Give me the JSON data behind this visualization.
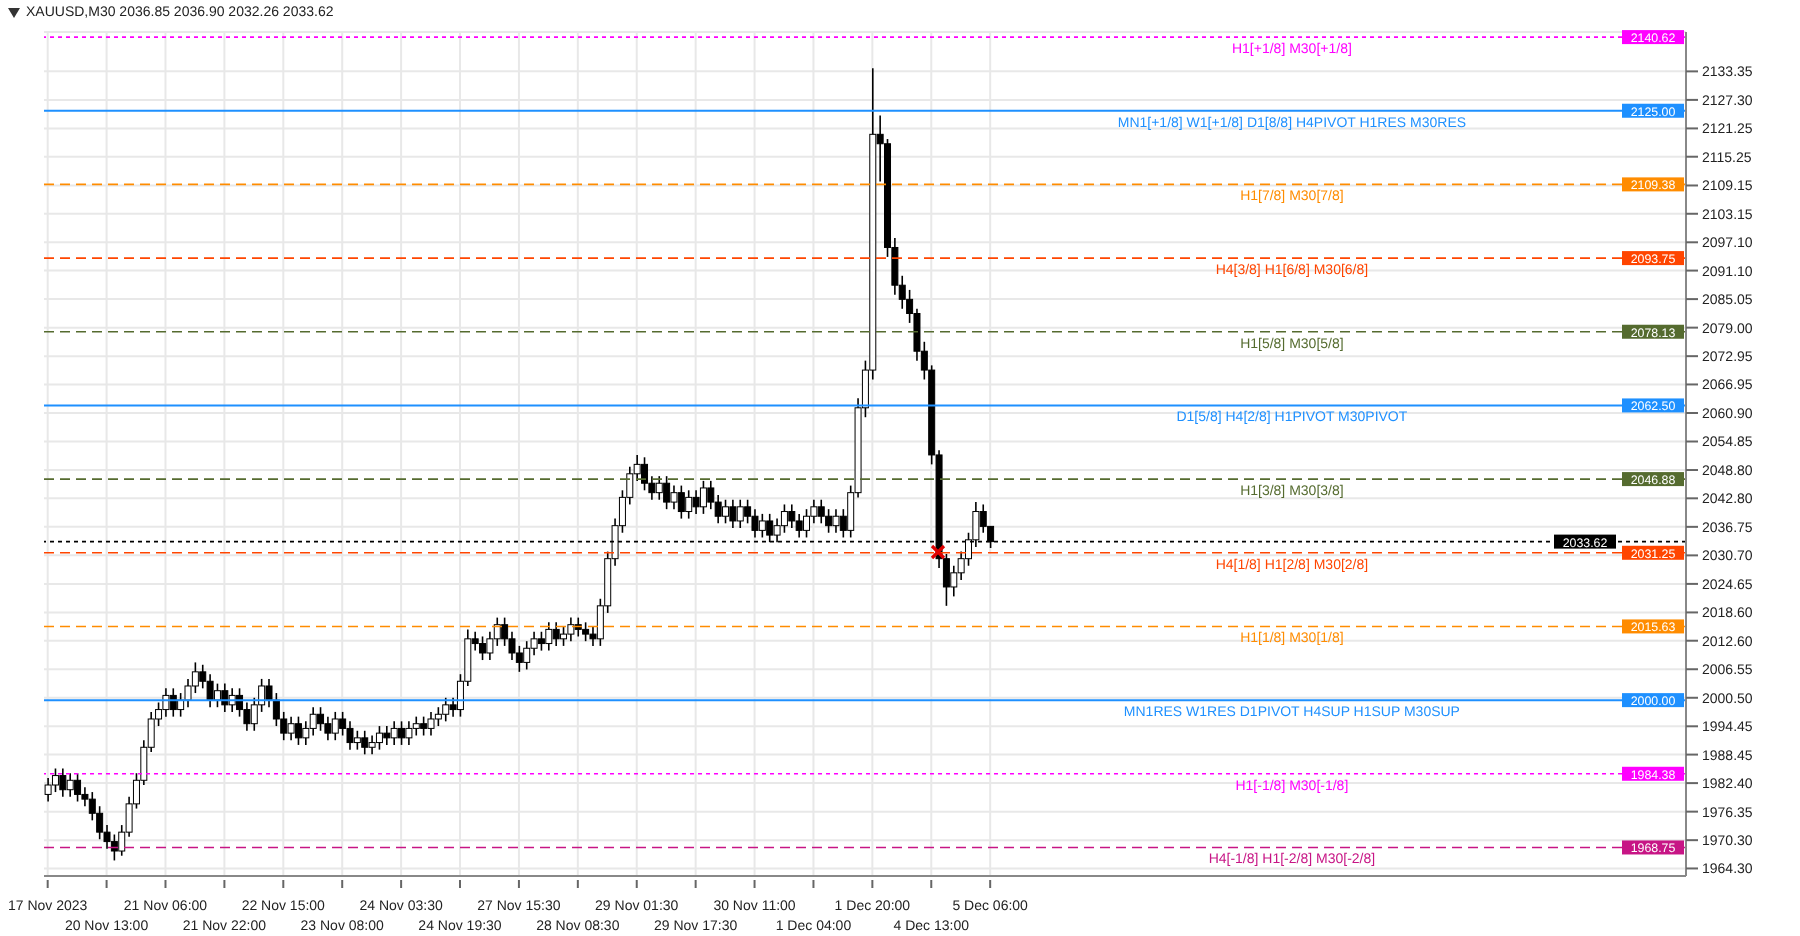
{
  "chart_data": {
    "type": "candlestick",
    "title": "XAUUSD,M30  2036.85 2036.90 2032.26 2033.62",
    "color": "#000000",
    "categories": [
      "17 Nov 2023",
      null,
      null,
      null,
      null,
      null,
      null,
      null,
      "20 Nov 13:00",
      null,
      null,
      null,
      null,
      null,
      null,
      null,
      "21 Nov 06:00",
      null,
      null,
      null,
      null,
      null,
      null,
      null,
      "21 Nov 22:00",
      null,
      null,
      null,
      null,
      null,
      null,
      null,
      "22 Nov 15:00",
      null,
      null,
      null,
      null,
      null,
      null,
      null,
      "23 Nov 08:00",
      null,
      null,
      null,
      null,
      null,
      null,
      null,
      "24 Nov 03:30",
      null,
      null,
      null,
      null,
      null,
      null,
      null,
      "24 Nov 19:30",
      null,
      null,
      null,
      null,
      null,
      null,
      null,
      "27 Nov 15:30",
      null,
      null,
      null,
      null,
      null,
      null,
      null,
      "28 Nov 08:30",
      null,
      null,
      null,
      null,
      null,
      null,
      null,
      "29 Nov 01:30",
      null,
      null,
      null,
      null,
      null,
      null,
      null,
      "29 Nov 17:30",
      null,
      null,
      null,
      null,
      null,
      null,
      null,
      "30 Nov 11:00",
      null,
      null,
      null,
      null,
      null,
      null,
      null,
      "1 Dec 04:00",
      null,
      null,
      null,
      null,
      null,
      null,
      null,
      "1 Dec 20:00",
      null,
      null,
      null,
      null,
      null,
      null,
      null,
      "4 Dec 13:00",
      null,
      null,
      null,
      null,
      null,
      null,
      null,
      "5 Dec 06:00",
      null,
      null,
      null,
      null,
      null,
      null,
      null,
      null,
      null,
      null,
      null,
      null,
      null,
      null,
      null,
      null,
      null,
      null,
      null,
      null,
      null,
      null,
      null,
      null,
      null,
      null,
      null,
      null,
      null,
      null,
      null,
      null,
      null,
      null,
      null,
      null,
      null,
      null,
      null,
      null,
      null,
      null,
      null,
      null,
      null,
      null,
      null,
      null,
      null,
      null,
      null,
      null,
      null,
      null,
      null,
      null,
      null,
      null,
      null,
      null,
      null,
      null,
      null,
      null,
      null,
      null,
      null,
      null,
      null,
      null,
      null,
      null,
      null,
      null,
      null,
      null,
      null,
      null,
      null,
      null,
      null,
      null,
      null,
      null,
      null,
      null,
      null,
      null,
      null,
      null,
      null,
      null,
      null,
      null
    ],
    "ohlc": [
      [
        1980,
        1983.5,
        1978.5,
        1982
      ],
      [
        1982,
        1985.5,
        1980.5,
        1984
      ],
      [
        1984,
        1985.5,
        1979.5,
        1981
      ],
      [
        1981,
        1984.5,
        1979.5,
        1983
      ],
      [
        1983,
        1984.5,
        1978.5,
        1980
      ],
      [
        1980,
        1981.5,
        1977.5,
        1979
      ],
      [
        1979,
        1980.5,
        1974.5,
        1976
      ],
      [
        1976,
        1977.5,
        1970.5,
        1972
      ],
      [
        1972,
        1973.5,
        1968.5,
        1970
      ],
      [
        1970,
        1971.5,
        1966,
        1968
      ],
      [
        1968,
        1973.5,
        1967,
        1972
      ],
      [
        1972,
        1979.5,
        1971,
        1978
      ],
      [
        1978,
        1984.5,
        1977,
        1983
      ],
      [
        1983,
        1991.5,
        1982,
        1990
      ],
      [
        1990,
        1997.5,
        1989,
        1996
      ],
      [
        1996,
        1999.5,
        1994.5,
        1998
      ],
      [
        1998,
        2002.5,
        1996.5,
        2001
      ],
      [
        2001,
        2002.5,
        1996.5,
        1998
      ],
      [
        1998,
        2001.5,
        1996.5,
        2000
      ],
      [
        2000,
        2004.5,
        1998.5,
        2003
      ],
      [
        2003,
        2008,
        2001.5,
        2006
      ],
      [
        2006,
        2007.5,
        2002.5,
        2004
      ],
      [
        2004,
        2005.5,
        1998.5,
        2000
      ],
      [
        2000,
        2003.5,
        1998.5,
        2002
      ],
      [
        2002,
        2003.5,
        1997.5,
        1999
      ],
      [
        1999,
        2002.5,
        1997.5,
        2001
      ],
      [
        2001,
        2002.5,
        1996.5,
        1998
      ],
      [
        1998,
        1999.5,
        1993.5,
        1995
      ],
      [
        1995,
        2000.5,
        1993.5,
        1999
      ],
      [
        1999,
        2004.5,
        1997.5,
        2003
      ],
      [
        2003,
        2004.5,
        1998.5,
        2000
      ],
      [
        2000,
        2001.5,
        1994.5,
        1996
      ],
      [
        1996,
        1997.5,
        1991.5,
        1993
      ],
      [
        1993,
        1996.5,
        1991.5,
        1995
      ],
      [
        1995,
        1996.5,
        1990.5,
        1992
      ],
      [
        1992,
        1995.5,
        1990.5,
        1994
      ],
      [
        1994,
        1998.5,
        1992.5,
        1997
      ],
      [
        1997,
        1998.5,
        1993.5,
        1995
      ],
      [
        1995,
        1996.5,
        1991.5,
        1993
      ],
      [
        1993,
        1997.5,
        1991.5,
        1996
      ],
      [
        1996,
        1997.5,
        1992.5,
        1994
      ],
      [
        1994,
        1995.5,
        1989.5,
        1991
      ],
      [
        1991,
        1993.5,
        1989.5,
        1992
      ],
      [
        1992,
        1993.5,
        1988.5,
        1990
      ],
      [
        1990,
        1992.5,
        1988.5,
        1991
      ],
      [
        1991,
        1994.5,
        1989.5,
        1993
      ],
      [
        1993,
        1994.5,
        1990.5,
        1992
      ],
      [
        1992,
        1995.5,
        1990.5,
        1994
      ],
      [
        1994,
        1995.5,
        1990.5,
        1992
      ],
      [
        1992,
        1995.5,
        1990.5,
        1994
      ],
      [
        1994,
        1996.5,
        1992.5,
        1995
      ],
      [
        1995,
        1996.5,
        1992.5,
        1994
      ],
      [
        1994,
        1997.5,
        1992.5,
        1996
      ],
      [
        1996,
        1998.5,
        1994.5,
        1997
      ],
      [
        1997,
        2000.5,
        1995.5,
        1999
      ],
      [
        1999,
        2000.5,
        1996.5,
        1998
      ],
      [
        1998,
        2005.5,
        1996.5,
        2004
      ],
      [
        2004,
        2015,
        2003,
        2013
      ],
      [
        2013,
        2014.5,
        2010.5,
        2012
      ],
      [
        2012,
        2013.5,
        2008.5,
        2010
      ],
      [
        2010,
        2014.5,
        2008.5,
        2013
      ],
      [
        2013,
        2017.5,
        2011.5,
        2016
      ],
      [
        2016,
        2017.5,
        2011.5,
        2013
      ],
      [
        2013,
        2014.5,
        2008.5,
        2010
      ],
      [
        2010,
        2011.5,
        2006,
        2008
      ],
      [
        2008,
        2012.5,
        2006.5,
        2011
      ],
      [
        2011,
        2014.5,
        2009.5,
        2013
      ],
      [
        2013,
        2014.5,
        2010.5,
        2012
      ],
      [
        2012,
        2016.5,
        2010.5,
        2015
      ],
      [
        2015,
        2016.5,
        2011.5,
        2013
      ],
      [
        2013,
        2015.5,
        2011.5,
        2014
      ],
      [
        2014,
        2017.5,
        2012.5,
        2016
      ],
      [
        2016,
        2017.5,
        2013.5,
        2015
      ],
      [
        2015,
        2016.5,
        2012.5,
        2014
      ],
      [
        2014,
        2015.5,
        2011.5,
        2013
      ],
      [
        2013,
        2021.5,
        2011.5,
        2020
      ],
      [
        2020,
        2031.5,
        2018.5,
        2030
      ],
      [
        2030,
        2038.5,
        2028.5,
        2037
      ],
      [
        2037,
        2044.5,
        2035.5,
        2043
      ],
      [
        2043,
        2049.5,
        2041.5,
        2048
      ],
      [
        2048,
        2052,
        2046.5,
        2050
      ],
      [
        2050,
        2051.5,
        2044.5,
        2046
      ],
      [
        2046,
        2047.5,
        2042.5,
        2044
      ],
      [
        2044,
        2047.5,
        2042.5,
        2046
      ],
      [
        2046,
        2047.5,
        2040.5,
        2042
      ],
      [
        2042,
        2045.5,
        2040.5,
        2044
      ],
      [
        2044,
        2045.5,
        2038.5,
        2040
      ],
      [
        2040,
        2044.5,
        2038.5,
        2043
      ],
      [
        2043,
        2044.5,
        2039.5,
        2041
      ],
      [
        2041,
        2046.5,
        2039.5,
        2045
      ],
      [
        2045,
        2046.5,
        2040.5,
        2042
      ],
      [
        2042,
        2043.5,
        2037.5,
        2039
      ],
      [
        2039,
        2042.5,
        2037.5,
        2041
      ],
      [
        2041,
        2042.5,
        2036.5,
        2038
      ],
      [
        2038,
        2042.5,
        2036.5,
        2041
      ],
      [
        2041,
        2042.5,
        2037.5,
        2039
      ],
      [
        2039,
        2040.5,
        2034.5,
        2036
      ],
      [
        2036,
        2039.5,
        2034.5,
        2038
      ],
      [
        2038,
        2039.5,
        2033.5,
        2035
      ],
      [
        2035,
        2038.5,
        2033.5,
        2037
      ],
      [
        2037,
        2041.5,
        2035.5,
        2040
      ],
      [
        2040,
        2041.5,
        2036.5,
        2038
      ],
      [
        2038,
        2039.5,
        2034.5,
        2036
      ],
      [
        2036,
        2040.5,
        2034.5,
        2039
      ],
      [
        2039,
        2042.5,
        2037.5,
        2041
      ],
      [
        2041,
        2042.5,
        2037.5,
        2039
      ],
      [
        2039,
        2040.5,
        2035.5,
        2037
      ],
      [
        2037,
        2040.5,
        2035.5,
        2039
      ],
      [
        2039,
        2040.5,
        2034.5,
        2036
      ],
      [
        2036,
        2045.5,
        2034.5,
        2044
      ],
      [
        2044,
        2064,
        2043,
        2062
      ],
      [
        2062,
        2072,
        2060,
        2070
      ],
      [
        2070,
        2134,
        2068,
        2120
      ],
      [
        2120,
        2124,
        2110,
        2118
      ],
      [
        2118,
        2119,
        2094,
        2096
      ],
      [
        2096,
        2098,
        2086,
        2088
      ],
      [
        2088,
        2090,
        2083,
        2085
      ],
      [
        2085,
        2087,
        2080,
        2082
      ],
      [
        2082,
        2083,
        2072,
        2074
      ],
      [
        2074,
        2076,
        2068,
        2070
      ],
      [
        2070,
        2071,
        2050,
        2052
      ],
      [
        2052,
        2053,
        2028,
        2030
      ],
      [
        2030,
        2031,
        2020,
        2024
      ],
      [
        2024,
        2028.5,
        2022,
        2027
      ],
      [
        2027,
        2031.5,
        2025.5,
        2030
      ],
      [
        2030,
        2035.5,
        2028.5,
        2034
      ],
      [
        2034,
        2042,
        2032.5,
        2040
      ],
      [
        2040,
        2041.5,
        2035.5,
        2036.85
      ],
      [
        2036.85,
        2036.9,
        2032.26,
        2033.62
      ],
      null,
      null,
      null,
      null,
      null,
      null,
      null,
      null,
      null,
      null,
      null,
      null,
      null,
      null,
      null,
      null,
      null,
      null,
      null,
      null,
      null,
      null,
      null,
      null,
      null,
      null,
      null,
      null,
      null,
      null,
      null,
      null,
      null,
      null,
      null,
      null,
      null,
      null,
      null,
      null,
      null,
      null,
      null,
      null,
      null,
      null,
      null,
      null,
      null,
      null,
      null,
      null,
      null,
      null,
      null,
      null,
      null,
      null,
      null,
      null,
      null,
      null,
      null,
      null,
      null,
      null,
      null,
      null,
      null,
      null,
      null,
      null,
      null,
      null,
      null,
      null,
      null,
      null,
      null,
      null,
      null,
      null,
      null,
      null,
      null,
      null,
      null,
      null,
      null,
      null,
      null,
      null,
      null,
      null
    ],
    "ylim": [
      1962.7,
      2141.7
    ],
    "yticks": [
      {
        "value": 2133.35,
        "label": "2133.35"
      },
      {
        "value": 2127.3,
        "label": "2127.30"
      },
      {
        "value": 2121.25,
        "label": "2121.25"
      },
      {
        "value": 2115.25,
        "label": "2115.25"
      },
      {
        "value": 2109.15,
        "label": "2109.15"
      },
      {
        "value": 2103.15,
        "label": "2103.15"
      },
      {
        "value": 2097.1,
        "label": "2097.10"
      },
      {
        "value": 2091.1,
        "label": "2091.10"
      },
      {
        "value": 2085.05,
        "label": "2085.05"
      },
      {
        "value": 2079.0,
        "label": "2079.00"
      },
      {
        "value": 2072.95,
        "label": "2072.95"
      },
      {
        "value": 2066.95,
        "label": "2066.95"
      },
      {
        "value": 2060.9,
        "label": "2060.90"
      },
      {
        "value": 2054.85,
        "label": "2054.85"
      },
      {
        "value": 2048.8,
        "label": "2048.80"
      },
      {
        "value": 2042.8,
        "label": "2042.80"
      },
      {
        "value": 2036.75,
        "label": "2036.75"
      },
      {
        "value": 2030.7,
        "label": "2030.70"
      },
      {
        "value": 2024.65,
        "label": "2024.65"
      },
      {
        "value": 2018.6,
        "label": "2018.60"
      },
      {
        "value": 2012.6,
        "label": "2012.60"
      },
      {
        "value": 2006.55,
        "label": "2006.55"
      },
      {
        "value": 2000.5,
        "label": "2000.50"
      },
      {
        "value": 1994.45,
        "label": "1994.45"
      },
      {
        "value": 1988.45,
        "label": "1988.45"
      },
      {
        "value": 1982.4,
        "label": "1982.40"
      },
      {
        "value": 1976.35,
        "label": "1976.35"
      },
      {
        "value": 1970.3,
        "label": "1970.30"
      },
      {
        "value": 1964.3,
        "label": "1964.30"
      }
    ],
    "grid": true,
    "ref_lines": [
      {
        "axis": "y",
        "value": 2140.62,
        "label": "2140.62",
        "color": "#ff00ff",
        "line_style": "dotted"
      },
      {
        "axis": "y",
        "value": 2125.0,
        "label": "2125.00",
        "color": "#1e90ff",
        "line_style": "solid"
      },
      {
        "axis": "y",
        "value": 2109.38,
        "label": "2109.38",
        "color": "#ff8c00",
        "line_style": "dashed"
      },
      {
        "axis": "y",
        "value": 2093.75,
        "label": "2093.75",
        "color": "#ff4500",
        "line_style": "dashed"
      },
      {
        "axis": "y",
        "value": 2078.13,
        "label": "2078.13",
        "color": "#556b2f",
        "line_style": "dashed"
      },
      {
        "axis": "y",
        "value": 2062.5,
        "label": "2062.50",
        "color": "#1e90ff",
        "line_style": "solid"
      },
      {
        "axis": "y",
        "value": 2046.88,
        "label": "2046.88",
        "color": "#556b2f",
        "line_style": "dashed"
      },
      {
        "axis": "y",
        "value": 2033.62,
        "label": "2033.62",
        "color": "#000000",
        "line_style": "dotted"
      },
      {
        "axis": "y",
        "value": 2031.25,
        "label": "2031.25",
        "color": "#ff4500",
        "line_style": "dashed"
      },
      {
        "axis": "y",
        "value": 2015.63,
        "label": "2015.63",
        "color": "#ff8c00",
        "line_style": "dashed"
      },
      {
        "axis": "y",
        "value": 2000.0,
        "label": "2000.00",
        "color": "#1e90ff",
        "line_style": "solid"
      },
      {
        "axis": "y",
        "value": 1984.38,
        "label": "1984.38",
        "color": "#ff00ff",
        "line_style": "dotted"
      },
      {
        "axis": "y",
        "value": 1968.75,
        "label": "1968.75",
        "color": "#c71585",
        "line_style": "dashed"
      }
    ],
    "annotations": [
      {
        "text": "H1[+1/8] M30[+1/8]",
        "y": 2140.62
      },
      {
        "text": "MN1[+1/8] W1[+1/8] D1[8/8] H4PIVOT H1RES M30RES",
        "y": 2125.0
      },
      {
        "text": "H1[7/8] M30[7/8]",
        "y": 2109.38
      },
      {
        "text": "H4[3/8] H1[6/8] M30[6/8]",
        "y": 2093.75
      },
      {
        "text": "H1[5/8] M30[5/8]",
        "y": 2078.13
      },
      {
        "text": "D1[5/8] H4[2/8] H1PIVOT M30PIVOT",
        "y": 2062.5
      },
      {
        "text": "H1[3/8] M30[3/8]",
        "y": 2046.88
      },
      {
        "text": "H4[1/8] H1[2/8] M30[2/8]",
        "y": 2031.25
      },
      {
        "text": "H1[1/8] M30[1/8]",
        "y": 2015.63
      },
      {
        "text": "MN1RES W1RES D1PIVOT H4SUP H1SUP M30SUP",
        "y": 2000.0
      },
      {
        "text": "H1[-1/8] M30[-1/8]",
        "y": 1984.38
      },
      {
        "text": "H4[-1/8] H1[-2/8] M30[-2/8]",
        "y": 1968.75
      }
    ]
  }
}
